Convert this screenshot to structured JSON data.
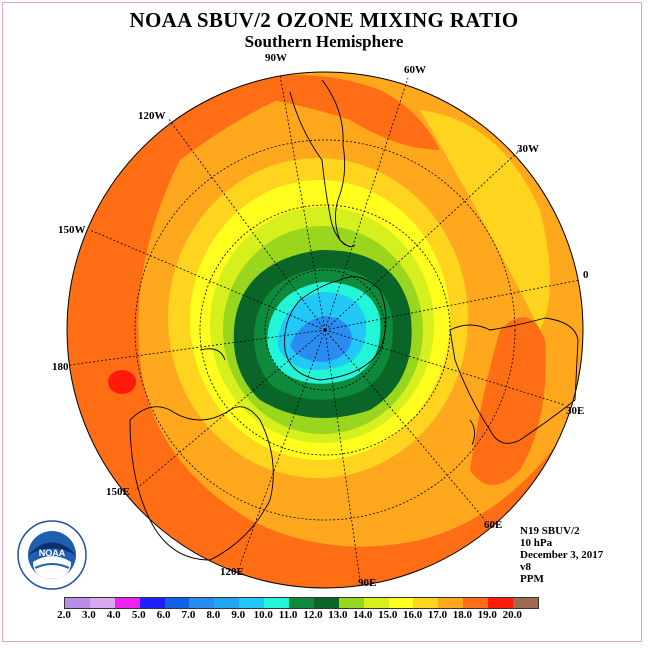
{
  "title": "NOAA SBUV/2 OZONE MIXING RATIO",
  "subtitle": "Southern Hemisphere",
  "longitude_labels": [
    "90W",
    "60W",
    "30W",
    "0",
    "30E",
    "60E",
    "90E",
    "120E",
    "150E",
    "180",
    "150W",
    "120W"
  ],
  "info": {
    "instrument": "N19 SBUV/2",
    "level": "10 hPa",
    "date": "December 3, 2017",
    "version": "v8",
    "units": "PPM"
  },
  "logo_text": "NOAA",
  "colorbar": {
    "ticks": [
      "2.0",
      "3.0",
      "4.0",
      "5.0",
      "6.0",
      "7.0",
      "8.0",
      "9.0",
      "10.0",
      "11.0",
      "12.0",
      "13.0",
      "14.0",
      "15.0",
      "16.0",
      "17.0",
      "18.0",
      "19.0",
      "20.0"
    ],
    "colors": [
      "#b98ee6",
      "#d8a8f0",
      "#ee22ee",
      "#2020ff",
      "#1060e8",
      "#2a8cf0",
      "#22a6f2",
      "#22c8f8",
      "#22f5d8",
      "#0d8a3c",
      "#0a6628",
      "#9ad61e",
      "#d6f01e",
      "#fffe1e",
      "#ffd41e",
      "#ffa81e",
      "#ff6d14",
      "#ff1a0a",
      "#9d6a4e"
    ]
  }
}
